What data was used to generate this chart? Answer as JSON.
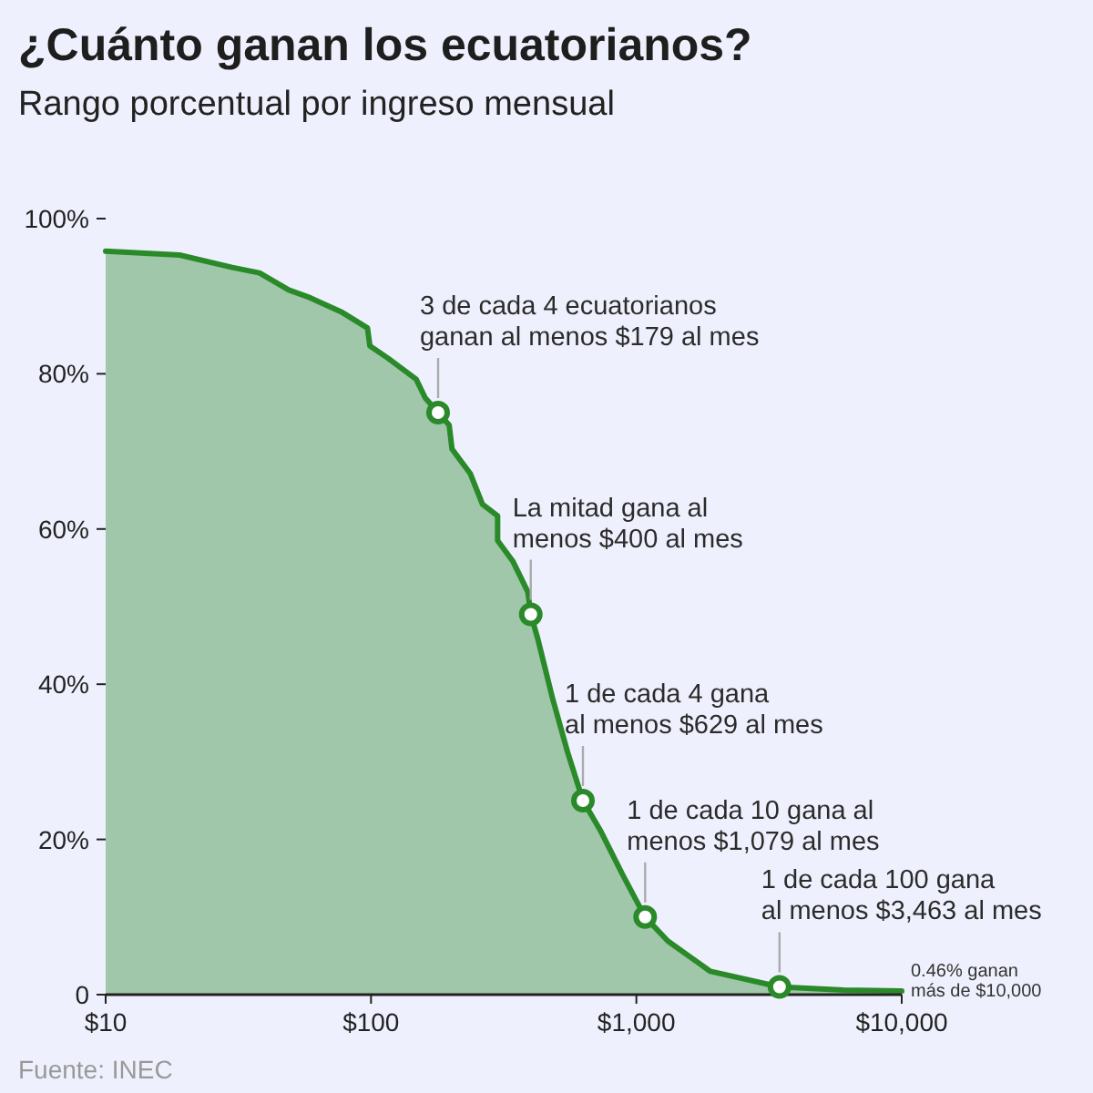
{
  "chart_data": {
    "type": "area",
    "title": "¿Cuánto ganan los ecuatorianos?",
    "subtitle": "Rango porcentual por ingreso mensual",
    "log": "x",
    "xlim": [
      10,
      10000
    ],
    "ylim": [
      0,
      100
    ],
    "xticks": [
      {
        "value": 10,
        "label": "$10"
      },
      {
        "value": 100,
        "label": "$100"
      },
      {
        "value": 1000,
        "label": "$1,000"
      },
      {
        "value": 10000,
        "label": "$10,000"
      }
    ],
    "yticks": [
      {
        "value": 0,
        "label": "0"
      },
      {
        "value": 20,
        "label": "20%"
      },
      {
        "value": 40,
        "label": "40%"
      },
      {
        "value": 60,
        "label": "60%"
      },
      {
        "value": 80,
        "label": "80%"
      },
      {
        "value": 100,
        "label": "100%"
      }
    ],
    "series": [
      {
        "color": "#2a8a2a",
        "x": [
          10,
          19,
          30,
          38,
          49,
          59,
          78,
          97,
          99,
          116,
          148,
          160,
          179,
          197,
          202,
          237,
          263,
          300,
          300,
          343,
          390,
          400,
          424,
          483,
          551,
          629,
          736,
          886,
          1079,
          1315,
          1900,
          3463,
          6050,
          10000
        ],
        "values": [
          95.8,
          95.3,
          93.7,
          93,
          90.8,
          89.8,
          87.9,
          85.9,
          83.6,
          82,
          79.3,
          76.9,
          75,
          73.4,
          70.3,
          67.1,
          63.2,
          61.7,
          58.5,
          55.8,
          51.9,
          49,
          46,
          38.2,
          31.2,
          25,
          21,
          15.5,
          10,
          6.9,
          3,
          1,
          0.6,
          0.46
        ]
      },
      {
        "type": "scatter",
        "color": "#2a8a2a",
        "marker": "circle",
        "x": [
          179,
          400,
          629,
          1079,
          3463
        ],
        "values": [
          75,
          49,
          25,
          10,
          1
        ]
      }
    ],
    "annotations": [
      {
        "text": "3 de cada 4 ecuatorianos ganan al menos $179 al mes",
        "x": 179,
        "y": 75
      },
      {
        "text": "La mitad gana al menos $400 al mes",
        "x": 400,
        "y": 49
      },
      {
        "text": "1 de cada 4 gana al menos $629 al mes",
        "x": 629,
        "y": 25
      },
      {
        "text": "1 de cada 10 gana al menos $1,079 al mes",
        "x": 1079,
        "y": 10
      },
      {
        "text": "1 de cada 100 gana al menos $3,463 al mes",
        "x": 3463,
        "y": 1
      },
      {
        "text": "0.46% ganan más de $10,000",
        "x": 10000,
        "y": 0.46
      },
      "Fuente: INEC"
    ]
  }
}
